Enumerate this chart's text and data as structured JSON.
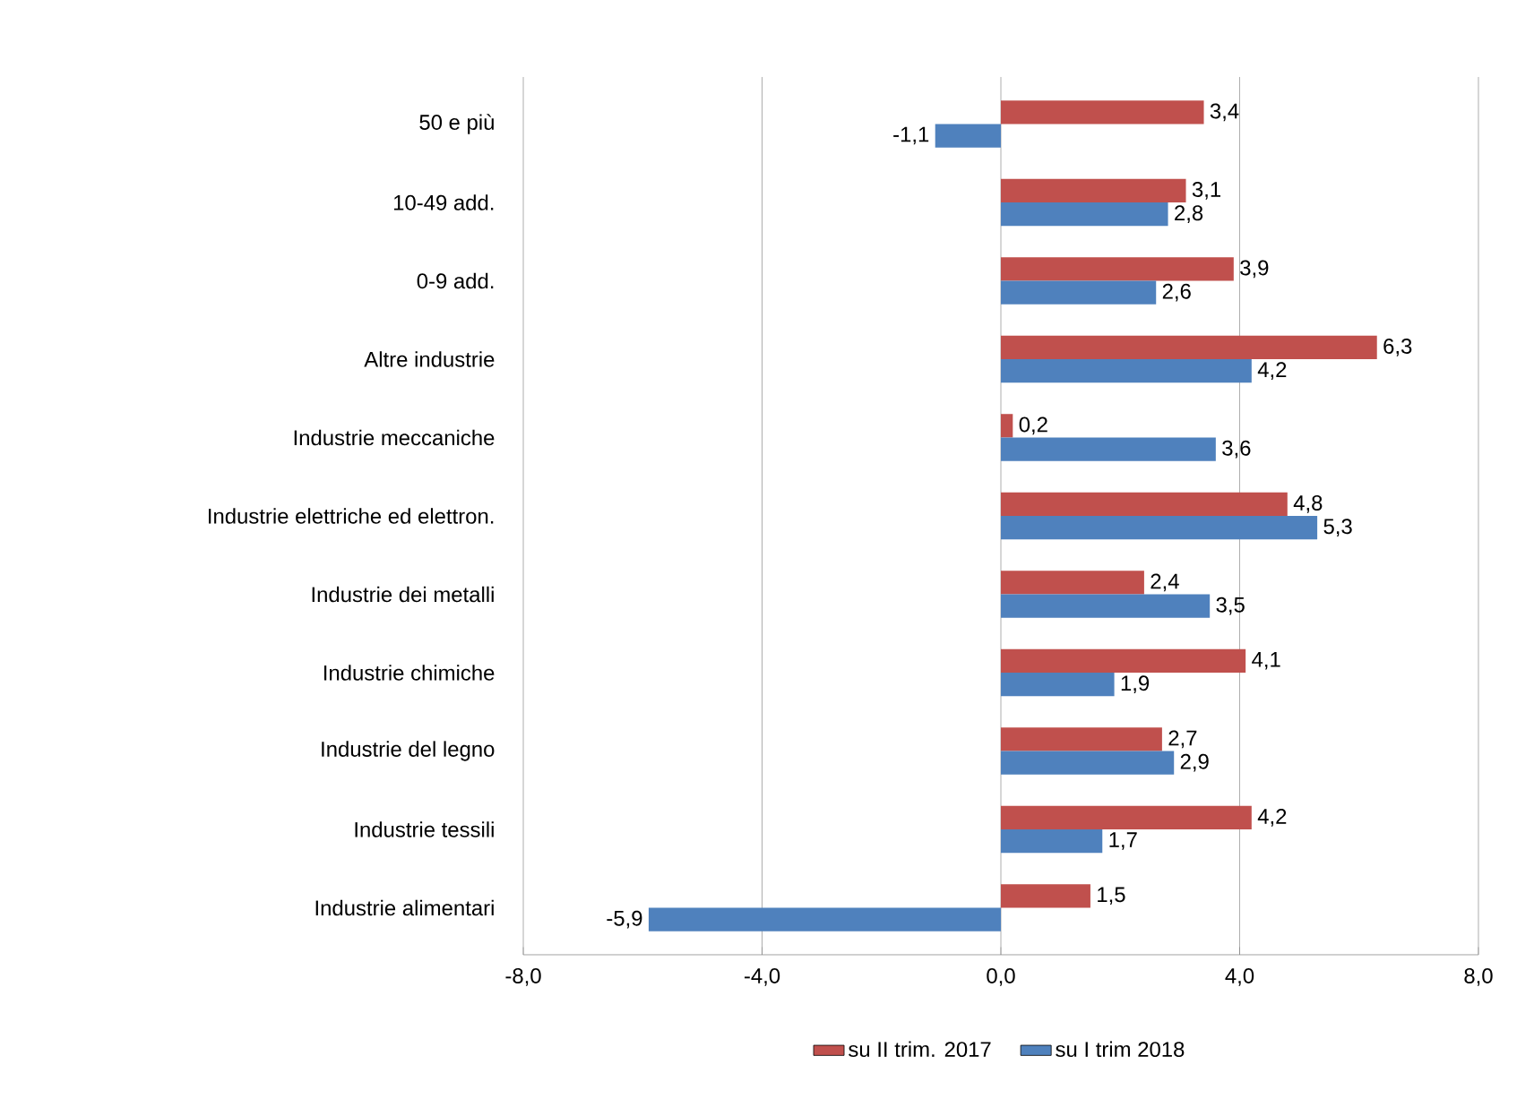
{
  "chart_data": {
    "type": "bar",
    "orientation": "horizontal",
    "categories": [
      "50 e più",
      "10-49 add.",
      "0-9 add.",
      "Altre industrie",
      "Industrie meccaniche",
      "Industrie elettriche ed elettron.",
      "Industrie dei metalli",
      "Industrie chimiche",
      "Industrie del legno",
      "Industrie tessili",
      "Industrie alimentari"
    ],
    "series": [
      {
        "name": "su II trim. 2017",
        "color": "#c0504d",
        "values": [
          3.4,
          3.1,
          3.9,
          6.3,
          0.2,
          4.8,
          2.4,
          4.1,
          2.7,
          4.2,
          1.5
        ],
        "value_labels": [
          "3,4",
          "3,1",
          "3,9",
          "6,3",
          "0,2",
          "4,8",
          "2,4",
          "4,1",
          "2,7",
          "4,2",
          "1,5"
        ]
      },
      {
        "name": "su I trim 2018",
        "color": "#4f81bd",
        "values": [
          -1.1,
          2.8,
          2.6,
          4.2,
          3.6,
          5.3,
          3.5,
          1.9,
          2.9,
          1.7,
          -5.9
        ],
        "value_labels": [
          "-1,1",
          "2,8",
          "2,6",
          "4,2",
          "3,6",
          "5,3",
          "3,5",
          "1,9",
          "2,9",
          "1,7",
          "-5,9"
        ]
      }
    ],
    "xlim": [
      -8,
      8
    ],
    "xticks": [
      {
        "value": -8,
        "label": "-8,0"
      },
      {
        "value": -4,
        "label": "-4,0"
      },
      {
        "value": 0,
        "label": "0,0"
      },
      {
        "value": 4,
        "label": "4,0"
      },
      {
        "value": 8,
        "label": "8,0"
      }
    ],
    "grid": "x",
    "legend": "bottom"
  }
}
